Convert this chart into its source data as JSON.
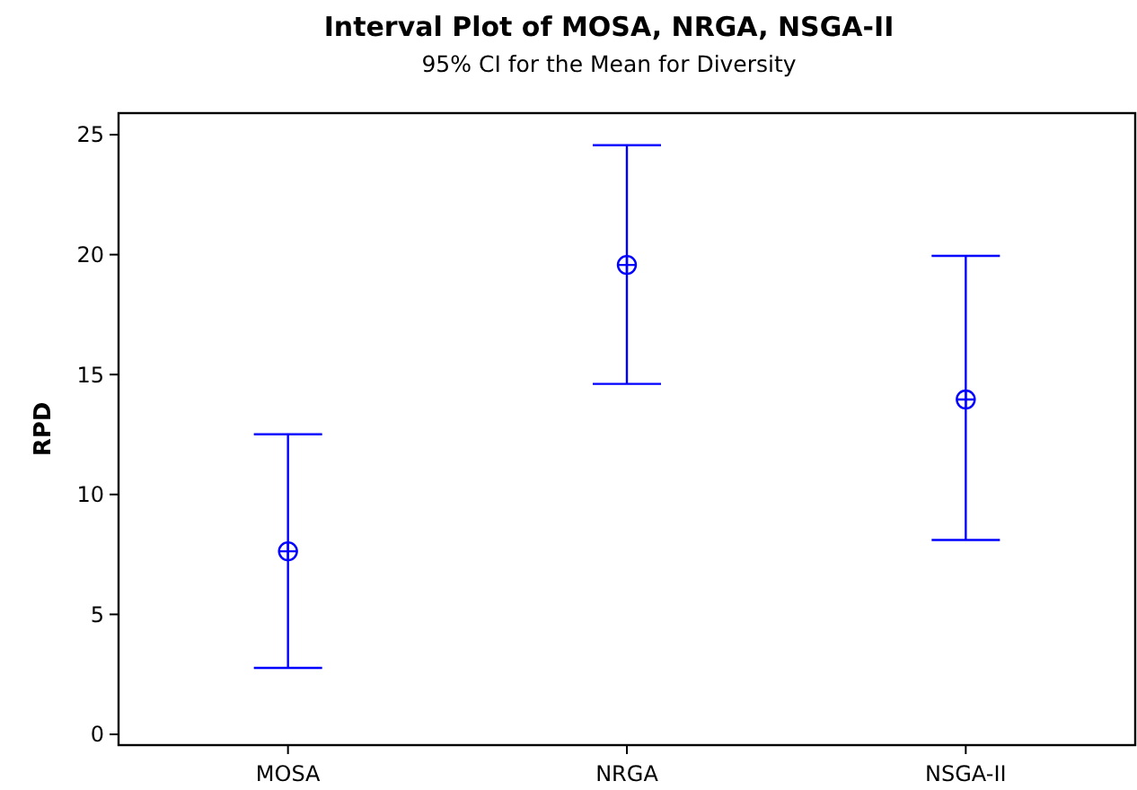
{
  "chart_data": {
    "type": "scatter",
    "title": "Interval Plot of MOSA, NRGA, NSGA-II",
    "subtitle": "95% CI for the Mean for Diversity",
    "ylabel": "RPD",
    "categories": [
      "MOSA",
      "NRGA",
      "NSGA-II"
    ],
    "series": [
      {
        "color": "#0000ff",
        "values": [
          7.63,
          19.57,
          13.96
        ],
        "errors": [
          [
            2.77,
            12.51
          ],
          [
            14.61,
            24.56
          ],
          [
            8.1,
            19.95
          ]
        ]
      }
    ],
    "ylim": [
      -0.45,
      25.9
    ],
    "yticks": [
      0,
      5,
      10,
      15,
      20,
      25
    ],
    "marker": "circle",
    "grid": false
  }
}
